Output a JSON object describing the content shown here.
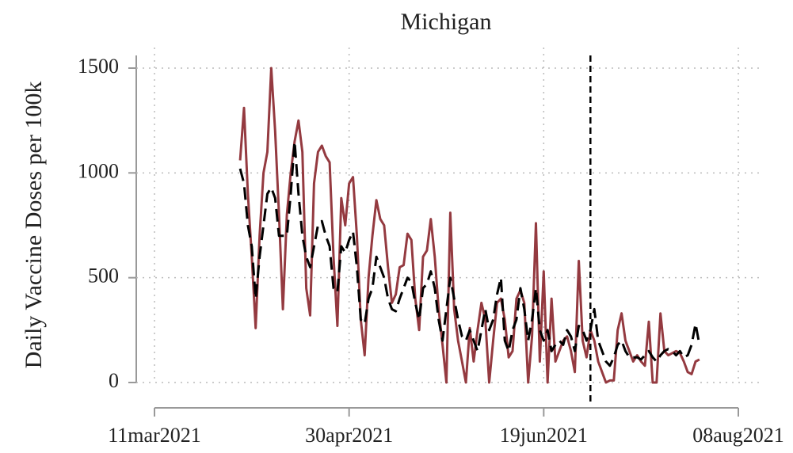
{
  "chart_data": {
    "type": "line",
    "title": "Michigan",
    "ylabel": "Daily Vaccine Doses per 100k",
    "x": [
      "2021-04-02",
      "2021-04-03",
      "2021-04-04",
      "2021-04-05",
      "2021-04-06",
      "2021-04-07",
      "2021-04-08",
      "2021-04-09",
      "2021-04-10",
      "2021-04-11",
      "2021-04-12",
      "2021-04-13",
      "2021-04-14",
      "2021-04-15",
      "2021-04-16",
      "2021-04-17",
      "2021-04-18",
      "2021-04-19",
      "2021-04-20",
      "2021-04-21",
      "2021-04-22",
      "2021-04-23",
      "2021-04-24",
      "2021-04-25",
      "2021-04-26",
      "2021-04-27",
      "2021-04-28",
      "2021-04-29",
      "2021-04-30",
      "2021-05-01",
      "2021-05-02",
      "2021-05-03",
      "2021-05-04",
      "2021-05-05",
      "2021-05-06",
      "2021-05-07",
      "2021-05-08",
      "2021-05-09",
      "2021-05-10",
      "2021-05-11",
      "2021-05-12",
      "2021-05-13",
      "2021-05-14",
      "2021-05-15",
      "2021-05-16",
      "2021-05-17",
      "2021-05-18",
      "2021-05-19",
      "2021-05-20",
      "2021-05-21",
      "2021-05-22",
      "2021-05-23",
      "2021-05-24",
      "2021-05-25",
      "2021-05-26",
      "2021-05-27",
      "2021-05-28",
      "2021-05-29",
      "2021-05-30",
      "2021-05-31",
      "2021-06-01",
      "2021-06-02",
      "2021-06-03",
      "2021-06-04",
      "2021-06-05",
      "2021-06-06",
      "2021-06-07",
      "2021-06-08",
      "2021-06-09",
      "2021-06-10",
      "2021-06-11",
      "2021-06-12",
      "2021-06-13",
      "2021-06-14",
      "2021-06-15",
      "2021-06-16",
      "2021-06-17",
      "2021-06-18",
      "2021-06-19",
      "2021-06-20",
      "2021-06-21",
      "2021-06-22",
      "2021-06-23",
      "2021-06-24",
      "2021-06-25",
      "2021-06-26",
      "2021-06-27",
      "2021-06-28",
      "2021-06-29",
      "2021-06-30",
      "2021-07-01",
      "2021-07-02",
      "2021-07-03",
      "2021-07-04",
      "2021-07-05",
      "2021-07-06",
      "2021-07-07",
      "2021-07-08",
      "2021-07-09",
      "2021-07-10",
      "2021-07-11",
      "2021-07-12",
      "2021-07-13",
      "2021-07-14",
      "2021-07-15",
      "2021-07-16",
      "2021-07-17",
      "2021-07-18",
      "2021-07-19",
      "2021-07-20",
      "2021-07-21",
      "2021-07-22",
      "2021-07-23",
      "2021-07-24",
      "2021-07-25",
      "2021-07-26",
      "2021-07-27",
      "2021-07-28",
      "2021-07-29"
    ],
    "series": [
      {
        "color": "#943a40",
        "dash": false,
        "values": [
          1060,
          1310,
          900,
          600,
          260,
          700,
          1000,
          1100,
          1500,
          1200,
          800,
          350,
          800,
          1000,
          1150,
          1250,
          1100,
          450,
          320,
          950,
          1100,
          1130,
          1080,
          1050,
          600,
          270,
          880,
          750,
          950,
          980,
          700,
          300,
          130,
          500,
          700,
          870,
          780,
          750,
          550,
          380,
          420,
          550,
          560,
          710,
          680,
          400,
          250,
          600,
          630,
          780,
          600,
          350,
          180,
          0,
          810,
          350,
          200,
          100,
          0,
          260,
          100,
          250,
          380,
          300,
          0,
          200,
          380,
          400,
          300,
          120,
          150,
          400,
          440,
          380,
          0,
          220,
          760,
          100,
          530,
          0,
          400,
          100,
          150,
          200,
          220,
          150,
          50,
          580,
          200,
          120,
          250,
          200,
          100,
          50,
          0,
          10,
          10,
          250,
          330,
          200,
          150,
          100,
          130,
          100,
          80,
          290,
          0,
          0,
          330,
          150,
          130,
          140,
          150,
          140,
          100,
          50,
          40,
          100,
          110
        ]
      },
      {
        "color": "#000000",
        "dash": true,
        "values": [
          1020,
          950,
          750,
          650,
          400,
          600,
          750,
          900,
          930,
          880,
          700,
          700,
          700,
          900,
          1150,
          900,
          700,
          600,
          550,
          650,
          750,
          770,
          700,
          650,
          450,
          430,
          650,
          620,
          680,
          720,
          550,
          300,
          280,
          400,
          450,
          600,
          550,
          500,
          400,
          350,
          340,
          400,
          450,
          500,
          480,
          380,
          300,
          450,
          470,
          530,
          450,
          300,
          200,
          350,
          500,
          400,
          300,
          220,
          200,
          250,
          200,
          150,
          250,
          350,
          250,
          300,
          420,
          500,
          200,
          150,
          250,
          300,
          450,
          350,
          200,
          300,
          450,
          250,
          200,
          250,
          150,
          180,
          200,
          180,
          250,
          220,
          150,
          270,
          250,
          200,
          250,
          350,
          200,
          150,
          100,
          80,
          120,
          180,
          200,
          150,
          120,
          120,
          120,
          110,
          130,
          150,
          120,
          100,
          130,
          150,
          160,
          150,
          130,
          150,
          120,
          130,
          180,
          280,
          180
        ]
      }
    ],
    "xlim": [
      "2021-03-11",
      "2021-08-08"
    ],
    "xticks": [
      {
        "value": "2021-03-11",
        "label": "11mar2021"
      },
      {
        "value": "2021-04-30",
        "label": "30apr2021"
      },
      {
        "value": "2021-06-19",
        "label": "19jun2021"
      },
      {
        "value": "2021-08-08",
        "label": "08aug2021"
      }
    ],
    "ylim": [
      0,
      1500
    ],
    "yticks": [
      0,
      500,
      1000,
      1500
    ],
    "grid": true,
    "vline": "2021-07-01"
  }
}
